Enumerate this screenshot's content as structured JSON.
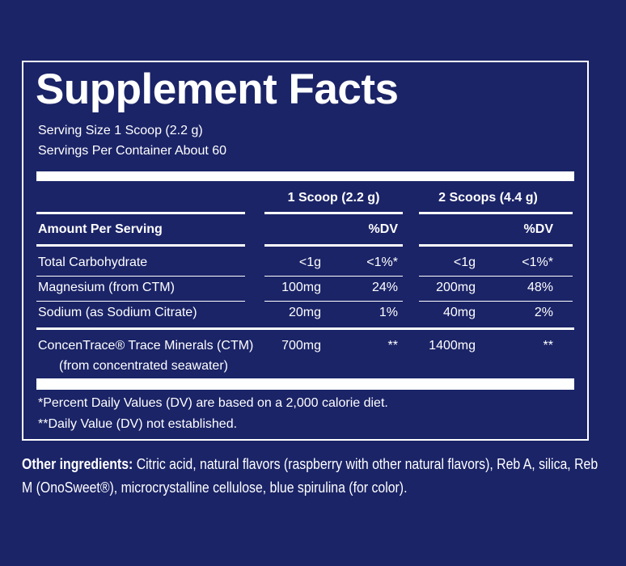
{
  "title": "Supplement Facts",
  "serving_size": "Serving Size 1 Scoop (2.2 g)",
  "servings_per_container": "Servings Per Container About 60",
  "columns": [
    "1 Scoop (2.2 g)",
    "2 Scoops (4.4 g)"
  ],
  "amount_header": "Amount Per Serving",
  "dv_header": "%DV",
  "rows": [
    [
      "Total Carbohydrate",
      "<1g",
      "<1%*",
      "<1g",
      "<1%*"
    ],
    [
      "Magnesium (from CTM)",
      "100mg",
      "24%",
      "200mg",
      "48%"
    ],
    [
      "Sodium (as Sodium Citrate)",
      "20mg",
      "1%",
      "40mg",
      "2%"
    ]
  ],
  "ctm": {
    "name": "ConcenTrace® Trace Minerals (CTM)",
    "source": "(from concentrated seawater)",
    "values": [
      "700mg",
      "**",
      "1400mg",
      "**"
    ]
  },
  "footnotes": [
    "*Percent Daily Values (DV) are based on a 2,000 calorie diet.",
    "**Daily Value (DV) not established."
  ],
  "other_ingredients": {
    "label": "Other ingredients:",
    "text": "Citric acid, natural flavors (raspberry with other natural flavors), Reb A, silica, Reb M (OnoSweet®), microcrystalline cellulose, blue spirulina (for color)."
  }
}
